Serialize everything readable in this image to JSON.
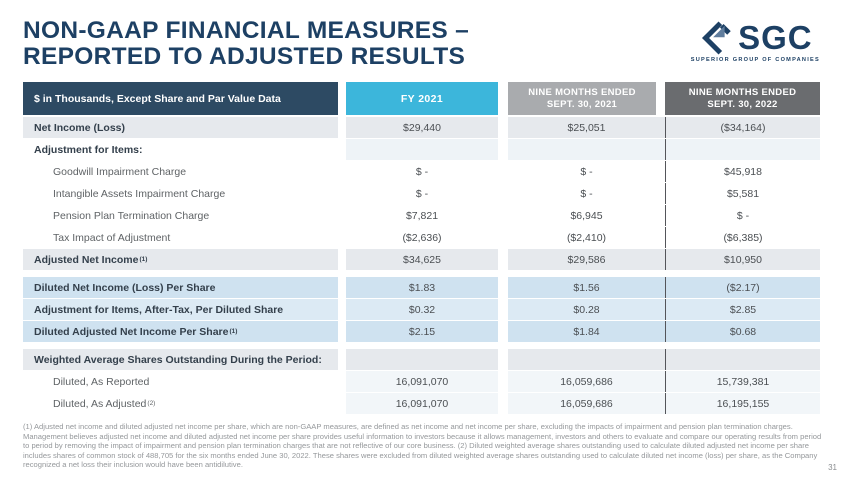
{
  "slide": {
    "title_line1": "NON-GAAP FINANCIAL MEASURES –",
    "title_line2": "REPORTED TO ADJUSTED RESULTS",
    "page_number": "31"
  },
  "logo": {
    "text": "SGC",
    "tagline": "SUPERIOR GROUP OF COMPANIES",
    "icon": "sgc-diamond-arrow-icon"
  },
  "colors": {
    "title_navy": "#1d4064",
    "header_label_bg": "#2d4a63",
    "header_fy_bg": "#3cb6db",
    "header_nm2021_bg": "#a9abae",
    "header_nm2022_bg": "#6a6c6f",
    "row_shaded_bg": "#e6e9ed",
    "row_blue_bg": "#cfe2f0",
    "row_blue_light_bg": "#dceaf4",
    "column_divider": "#54555a"
  },
  "table": {
    "col_headers": {
      "label": "$ in Thousands, Except Share and Par Value Data",
      "fy": "FY 2021",
      "nm2021_line1": "NINE MONTHS ENDED",
      "nm2021_line2": "SEPT. 30, 2021",
      "nm2022_line1": "NINE MONTHS ENDED",
      "nm2022_line2": "SEPT. 30, 2022"
    },
    "rows": [
      {
        "label": "Net Income (Loss)",
        "style": "shaded",
        "values": [
          "$29,440",
          "$25,051",
          "($34,164)"
        ]
      },
      {
        "label": "Adjustment for Items:",
        "style": "section",
        "values": [
          "",
          "",
          ""
        ]
      },
      {
        "label": "Goodwill Impairment Charge",
        "indent": true,
        "style": "item",
        "values": [
          "$ -",
          "$ -",
          "$45,918"
        ]
      },
      {
        "label": "Intangible Assets Impairment Charge",
        "indent": true,
        "style": "item",
        "values": [
          "$ -",
          "$ -",
          "$5,581"
        ]
      },
      {
        "label": "Pension Plan Termination Charge",
        "indent": true,
        "style": "item",
        "values": [
          "$7,821",
          "$6,945",
          "$ -"
        ]
      },
      {
        "label": "Tax Impact of Adjustment",
        "indent": true,
        "style": "item",
        "values": [
          "($2,636)",
          "($2,410)",
          "($6,385)"
        ]
      },
      {
        "label": "Adjusted Net Income",
        "sup": "(1)",
        "style": "shaded",
        "values": [
          "$34,625",
          "$29,586",
          "$10,950"
        ]
      },
      {
        "label": "Diluted Net Income (Loss) Per Share",
        "style": "blue",
        "gap_before": true,
        "values": [
          "$1.83",
          "$1.56",
          "($2.17)"
        ]
      },
      {
        "label": "Adjustment for Items, After-Tax, Per Diluted Share",
        "style": "blueLight",
        "values": [
          "$0.32",
          "$0.28",
          "$2.85"
        ]
      },
      {
        "label": "Diluted Adjusted Net Income Per Share",
        "sup": "(1)",
        "style": "blue",
        "values": [
          "$2.15",
          "$1.84",
          "$0.68"
        ]
      },
      {
        "label": "Weighted Average Shares Outstanding During the Period:",
        "style": "shaded",
        "gap_before": true,
        "values": [
          "",
          "",
          ""
        ]
      },
      {
        "label": "Diluted, As Reported",
        "indent": true,
        "style": "faint",
        "values": [
          "16,091,070",
          "16,059,686",
          "15,739,381"
        ]
      },
      {
        "label": "Diluted, As Adjusted",
        "sup": "(2)",
        "indent": true,
        "style": "faint",
        "values": [
          "16,091,070",
          "16,059,686",
          "16,195,155"
        ]
      }
    ]
  },
  "footnote": "(1) Adjusted net income and diluted adjusted net income per share, which are non-GAAP measures, are defined as net income and net income per share, excluding the impacts of impairment and pension plan termination charges. Management believes adjusted net income and diluted adjusted net income per share provides useful information to investors because it allows management, investors and others to evaluate and compare our operating results from period to period by removing the impact of impairment and pension plan termination charges that are not reflective of our core business. (2) Diluted weighted average shares outstanding used to calculate diluted adjusted net income per share includes shares of common stock of 488,705 for the six months ended June 30, 2022. These shares were excluded from diluted weighted average shares outstanding used to calculate diluted net income (loss) per share, as the Company recognized a net loss their inclusion would have been antidilutive."
}
